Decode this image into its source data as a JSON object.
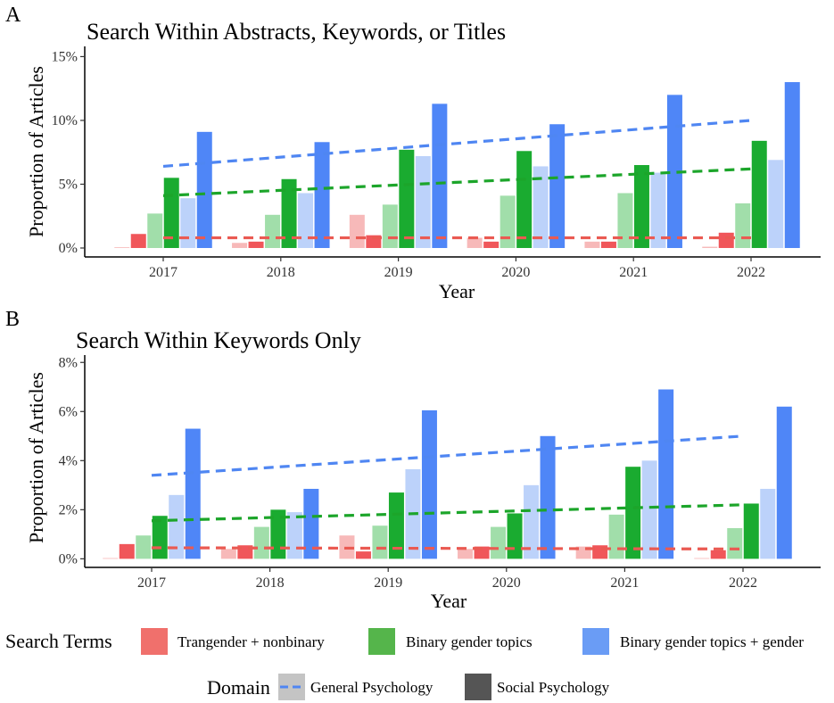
{
  "legend": {
    "search_terms_title": "Search Terms",
    "search_terms": [
      {
        "label": "Trangender + nonbinary",
        "color": "#f0706c"
      },
      {
        "label": "Binary gender topics",
        "color": "#55b54b"
      },
      {
        "label": "Binary gender topics + gender",
        "color": "#6a9cf5"
      }
    ],
    "domain_title": "Domain",
    "domains": [
      {
        "label": "General Psychology",
        "swatch": "#c4c4c4"
      },
      {
        "label": "Social Psychology",
        "swatch": "#555555"
      }
    ]
  },
  "colors": {
    "trans_social": "#f0565a",
    "trans_general": "#f7b9b9",
    "binary_social": "#1aab30",
    "binary_general": "#a1deaa",
    "gender_social": "#4f86f7",
    "gender_general": "#bcd2fa",
    "trend_trans": "#ea5a52",
    "trend_binary": "#1ca52a",
    "trend_gender": "#4f86f2"
  },
  "chart_data": [
    {
      "panel": "A",
      "type": "bar",
      "title": "Search Within Abstracts, Keywords, or Titles",
      "xlabel": "Year",
      "ylabel": "Proportion of Articles",
      "ylim": [
        -0.7,
        15.8
      ],
      "yticks": [
        0,
        5,
        10,
        15
      ],
      "ytick_labels": [
        "0%",
        "5%",
        "10%",
        "15%"
      ],
      "categories": [
        "2017",
        "2018",
        "2019",
        "2020",
        "2021",
        "2022"
      ],
      "series": [
        {
          "key": "trans_general",
          "values": [
            0.0,
            0.4,
            2.6,
            0.8,
            0.5,
            0.1
          ]
        },
        {
          "key": "trans_social",
          "values": [
            1.1,
            0.5,
            1.0,
            0.5,
            0.5,
            1.2
          ]
        },
        {
          "key": "binary_general",
          "values": [
            2.7,
            2.6,
            3.4,
            4.1,
            4.3,
            3.5
          ]
        },
        {
          "key": "binary_social",
          "values": [
            5.5,
            5.4,
            7.7,
            7.6,
            6.5,
            8.4
          ]
        },
        {
          "key": "gender_general",
          "values": [
            3.9,
            4.3,
            7.2,
            6.4,
            5.9,
            6.9
          ]
        },
        {
          "key": "gender_social",
          "values": [
            9.1,
            8.3,
            11.3,
            9.7,
            12.0,
            13.0
          ]
        }
      ],
      "trend_lines": [
        {
          "key": "trend_gender",
          "from": [
            2017,
            6.4
          ],
          "to": [
            2022,
            10.0
          ]
        },
        {
          "key": "trend_binary",
          "from": [
            2017,
            4.1
          ],
          "to": [
            2022,
            6.2
          ]
        },
        {
          "key": "trend_trans",
          "from": [
            2017,
            0.8
          ],
          "to": [
            2022,
            0.8
          ]
        }
      ]
    },
    {
      "panel": "B",
      "type": "bar",
      "title": "Search Within Keywords Only",
      "xlabel": "Year",
      "ylabel": "Proportion of Articles",
      "ylim": [
        -0.35,
        8.3
      ],
      "yticks": [
        0,
        2,
        4,
        6,
        8
      ],
      "ytick_labels": [
        "0%",
        "2%",
        "4%",
        "6%",
        "8%"
      ],
      "categories": [
        "2017",
        "2018",
        "2019",
        "2020",
        "2021",
        "2022"
      ],
      "series": [
        {
          "key": "trans_general",
          "values": [
            0.0,
            0.4,
            0.95,
            0.4,
            0.5,
            0.0
          ]
        },
        {
          "key": "trans_social",
          "values": [
            0.6,
            0.55,
            0.3,
            0.5,
            0.55,
            0.35
          ]
        },
        {
          "key": "binary_general",
          "values": [
            0.95,
            1.3,
            1.35,
            1.3,
            1.8,
            1.25
          ]
        },
        {
          "key": "binary_social",
          "values": [
            1.75,
            2.0,
            2.7,
            1.85,
            3.75,
            2.25
          ]
        },
        {
          "key": "gender_general",
          "values": [
            2.6,
            1.9,
            3.65,
            3.0,
            4.0,
            2.85
          ]
        },
        {
          "key": "gender_social",
          "values": [
            5.3,
            2.85,
            6.05,
            5.0,
            6.9,
            6.2
          ]
        }
      ],
      "trend_lines": [
        {
          "key": "trend_gender",
          "from": [
            2017,
            3.4
          ],
          "to": [
            2022,
            5.0
          ]
        },
        {
          "key": "trend_binary",
          "from": [
            2017,
            1.55
          ],
          "to": [
            2022,
            2.2
          ]
        },
        {
          "key": "trend_trans",
          "from": [
            2017,
            0.45
          ],
          "to": [
            2022,
            0.4
          ]
        }
      ]
    }
  ]
}
